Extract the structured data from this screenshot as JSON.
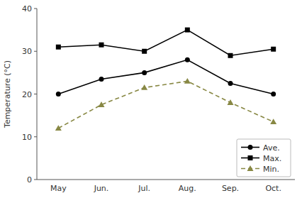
{
  "chart_data": {
    "type": "line",
    "categories": [
      "May",
      "Jun.",
      "Jul.",
      "Aug.",
      "Sep.",
      "Oct."
    ],
    "y_label": "Temperature (°C)",
    "ylim": [
      0,
      40
    ],
    "yticks": [
      0,
      10,
      20,
      30,
      40
    ],
    "grid": false,
    "legend": "lower right",
    "series": [
      {
        "name": "Ave.",
        "color": "#000000",
        "marker": "circle",
        "line_style": "solid",
        "values": [
          20,
          23.5,
          25,
          28,
          22.5,
          20
        ]
      },
      {
        "name": "Max.",
        "color": "#000000",
        "marker": "square",
        "line_style": "solid",
        "values": [
          31,
          31.5,
          30,
          35,
          29,
          30.5
        ]
      },
      {
        "name": "Min.",
        "color": "#888844",
        "marker": "triangle",
        "line_style": "dashed",
        "values": [
          12,
          17.5,
          21.5,
          23,
          18,
          13.5
        ]
      }
    ]
  }
}
